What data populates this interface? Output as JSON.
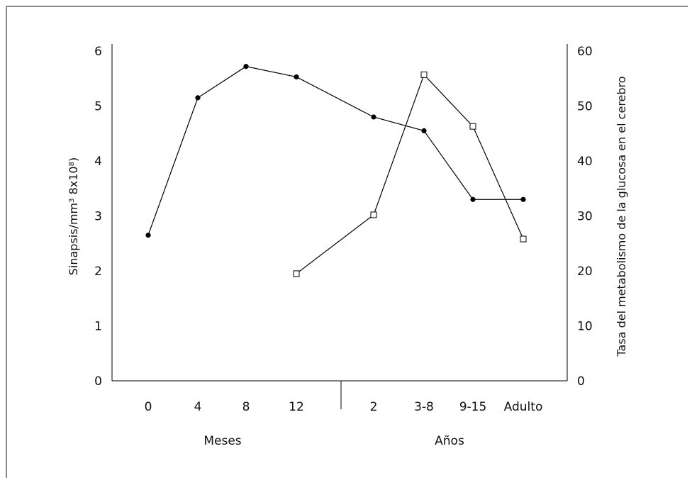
{
  "chart_data": {
    "type": "line",
    "categories": [
      "0",
      "4",
      "8",
      "12",
      "2",
      "3-8",
      "9-15",
      "Adulto"
    ],
    "category_groups": [
      {
        "label": "Meses",
        "categories": [
          "0",
          "4",
          "8",
          "12"
        ]
      },
      {
        "label": "Años",
        "categories": [
          "2",
          "3-8",
          "9-15",
          "Adulto"
        ]
      }
    ],
    "ylabel_left": "Sinapsis/mm",
    "ylabel_left_sup": "3",
    "ylabel_left_rest": " 8x10",
    "ylabel_left_exp": "8",
    "ylabel_left_close": ")",
    "ylim_left": [
      0,
      6
    ],
    "yticks_left": [
      "0",
      "1",
      "2",
      "3",
      "4",
      "5",
      "6"
    ],
    "ylabel_right": "Tasa del metabolismo de la glucosa en el cerebro",
    "ylim_right": [
      0,
      60
    ],
    "yticks_right": [
      "0",
      "10",
      "20",
      "30",
      "40",
      "50",
      "60"
    ],
    "grid": false,
    "series": [
      {
        "marker": "filled-circle",
        "axis": "left",
        "x": [
          "0",
          "4",
          "8",
          "12",
          "2",
          "3-8",
          "9-15",
          "Adulto"
        ],
        "values": [
          2.65,
          5.15,
          5.72,
          5.53,
          4.8,
          4.55,
          3.3,
          3.3
        ]
      },
      {
        "marker": "open-square",
        "axis": "right",
        "x": [
          "12",
          "2",
          "3-8",
          "9-15",
          "Adulto"
        ],
        "values": [
          19.5,
          30.2,
          55.7,
          46.3,
          25.8
        ]
      }
    ]
  }
}
